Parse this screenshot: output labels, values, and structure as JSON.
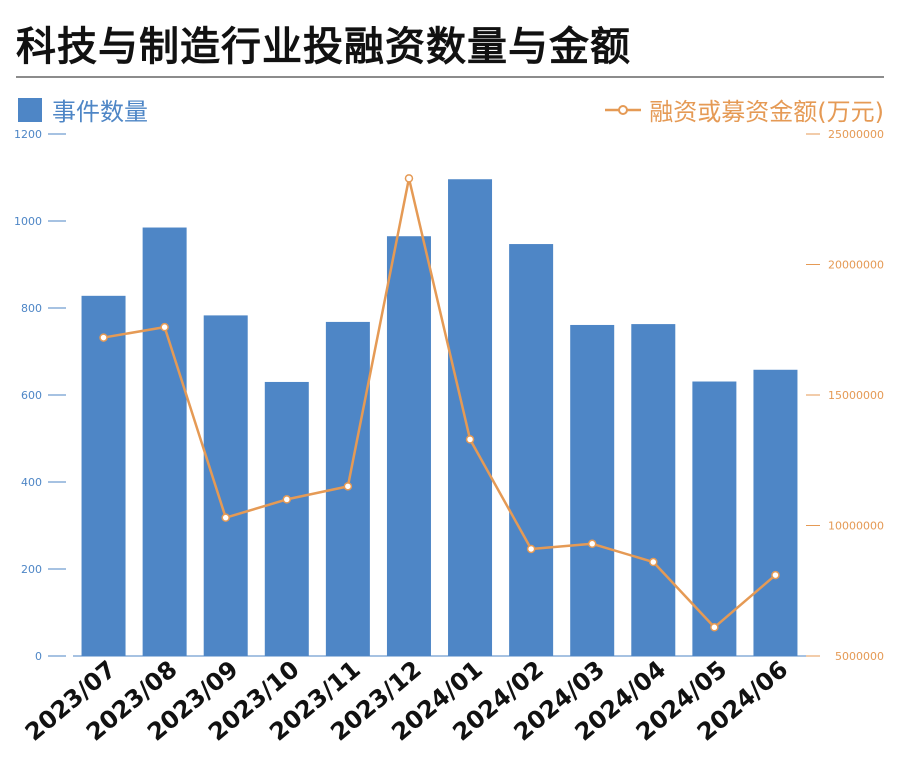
{
  "chart_data": {
    "type": "bar",
    "title": "科技与制造行业投融资数量与金额",
    "categories": [
      "2023/07",
      "2023/08",
      "2023/09",
      "2023/10",
      "2023/11",
      "2023/12",
      "2024/01",
      "2024/02",
      "2024/03",
      "2024/04",
      "2024/05",
      "2024/06"
    ],
    "series": [
      {
        "name": "事件数量",
        "type": "bar",
        "axis": "left",
        "color": "#4E86C6",
        "values": [
          828,
          985,
          783,
          630,
          768,
          965,
          1096,
          947,
          761,
          763,
          631,
          658
        ]
      },
      {
        "name": "融资或募资金额(万元)",
        "type": "line",
        "axis": "right",
        "color": "#E59A55",
        "values": [
          17200000,
          17600000,
          10300000,
          11000000,
          11500000,
          23300000,
          13300000,
          9100000,
          9300000,
          8600000,
          6100000,
          8100000
        ]
      }
    ],
    "y_left": {
      "min": 0,
      "max": 1200,
      "ticks": [
        0,
        200,
        400,
        600,
        800,
        1000,
        1200
      ],
      "color": "#4E86C6"
    },
    "y_right": {
      "min": 5000000,
      "max": 25000000,
      "ticks": [
        5000000,
        10000000,
        15000000,
        20000000,
        25000000
      ],
      "color": "#E59A55"
    },
    "grid": false,
    "legend": [
      "top-left",
      "top-right"
    ]
  }
}
